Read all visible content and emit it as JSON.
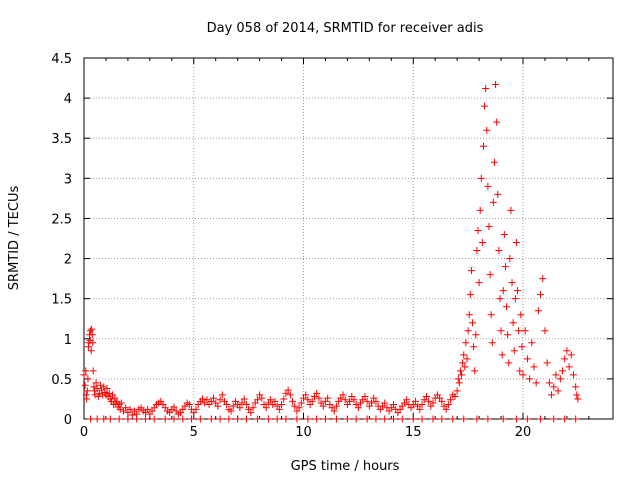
{
  "chart_data": {
    "type": "scatter",
    "title": "Day 058 of 2014, SRMTID for receiver adis",
    "xlabel": "GPS time / hours",
    "ylabel": "SRMTID / TECUs",
    "xlim": [
      0,
      24.1
    ],
    "ylim": [
      0,
      4.5
    ],
    "xticks": [
      0,
      5,
      10,
      15,
      20
    ],
    "yticks": [
      0,
      0.5,
      1,
      1.5,
      2,
      2.5,
      3,
      3.5,
      4,
      4.5
    ],
    "xtick_labels": [
      "0",
      "5",
      "10",
      "15",
      "20"
    ],
    "ytick_labels": [
      "0",
      "0.5",
      "1",
      "1.5",
      "2",
      "2.5",
      "3",
      "3.5",
      "4",
      "4.5"
    ],
    "grid": true,
    "marker": "+",
    "marker_color": "#ff0000",
    "series": [
      {
        "name": "SRMTID",
        "points": [
          [
            0.0,
            0.55
          ],
          [
            0.05,
            0.42
          ],
          [
            0.08,
            0.6
          ],
          [
            0.1,
            0.3
          ],
          [
            0.12,
            0.25
          ],
          [
            0.15,
            0.35
          ],
          [
            0.18,
            0.5
          ],
          [
            0.2,
            0.9
          ],
          [
            0.22,
            0.95
          ],
          [
            0.25,
            1.05
          ],
          [
            0.28,
            0.98
          ],
          [
            0.3,
            1.1
          ],
          [
            0.33,
            0.85
          ],
          [
            0.35,
            1.12
          ],
          [
            0.38,
            1.05
          ],
          [
            0.4,
            0.95
          ],
          [
            0.42,
            0.6
          ],
          [
            0.45,
            0.4
          ],
          [
            0.48,
            0.35
          ],
          [
            0.5,
            0.3
          ],
          [
            0.55,
            0.45
          ],
          [
            0.6,
            0.38
          ],
          [
            0.65,
            0.28
          ],
          [
            0.7,
            0.32
          ],
          [
            0.75,
            0.42
          ],
          [
            0.8,
            0.36
          ],
          [
            0.85,
            0.3
          ],
          [
            0.9,
            0.4
          ],
          [
            0.95,
            0.33
          ],
          [
            1.0,
            0.3
          ],
          [
            1.05,
            0.38
          ],
          [
            1.1,
            0.28
          ],
          [
            1.15,
            0.32
          ],
          [
            1.2,
            0.25
          ],
          [
            1.25,
            0.22
          ],
          [
            1.3,
            0.3
          ],
          [
            1.35,
            0.18
          ],
          [
            1.4,
            0.26
          ],
          [
            1.45,
            0.2
          ],
          [
            1.5,
            0.22
          ],
          [
            1.55,
            0.15
          ],
          [
            1.6,
            0.18
          ],
          [
            1.65,
            0.12
          ],
          [
            1.7,
            0.2
          ],
          [
            1.8,
            0.1
          ],
          [
            1.9,
            0.14
          ],
          [
            2.0,
            0.08
          ],
          [
            2.1,
            0.12
          ],
          [
            2.2,
            0.05
          ],
          [
            2.3,
            0.1
          ],
          [
            2.4,
            0.06
          ],
          [
            2.5,
            0.12
          ],
          [
            2.6,
            0.14
          ],
          [
            2.7,
            0.1
          ],
          [
            2.8,
            0.08
          ],
          [
            2.9,
            0.12
          ],
          [
            3.0,
            0.06
          ],
          [
            3.1,
            0.1
          ],
          [
            3.2,
            0.14
          ],
          [
            3.3,
            0.18
          ],
          [
            3.4,
            0.2
          ],
          [
            3.5,
            0.22
          ],
          [
            3.6,
            0.18
          ],
          [
            3.7,
            0.14
          ],
          [
            3.8,
            0.1
          ],
          [
            3.9,
            0.08
          ],
          [
            4.0,
            0.12
          ],
          [
            4.1,
            0.15
          ],
          [
            4.2,
            0.1
          ],
          [
            4.3,
            0.06
          ],
          [
            4.4,
            0.08
          ],
          [
            4.5,
            0.12
          ],
          [
            4.6,
            0.16
          ],
          [
            4.7,
            0.2
          ],
          [
            4.8,
            0.18
          ],
          [
            4.9,
            0.12
          ],
          [
            5.0,
            0.08
          ],
          [
            5.1,
            0.12
          ],
          [
            5.2,
            0.18
          ],
          [
            5.3,
            0.22
          ],
          [
            5.4,
            0.25
          ],
          [
            5.5,
            0.2
          ],
          [
            5.6,
            0.24
          ],
          [
            5.7,
            0.18
          ],
          [
            5.8,
            0.22
          ],
          [
            5.9,
            0.26
          ],
          [
            6.0,
            0.2
          ],
          [
            6.1,
            0.16
          ],
          [
            6.2,
            0.24
          ],
          [
            6.3,
            0.3
          ],
          [
            6.4,
            0.22
          ],
          [
            6.5,
            0.18
          ],
          [
            6.6,
            0.12
          ],
          [
            6.7,
            0.1
          ],
          [
            6.8,
            0.16
          ],
          [
            6.9,
            0.22
          ],
          [
            7.0,
            0.18
          ],
          [
            7.1,
            0.14
          ],
          [
            7.2,
            0.2
          ],
          [
            7.3,
            0.25
          ],
          [
            7.4,
            0.18
          ],
          [
            7.5,
            0.12
          ],
          [
            7.6,
            0.08
          ],
          [
            7.7,
            0.14
          ],
          [
            7.8,
            0.2
          ],
          [
            7.9,
            0.24
          ],
          [
            8.0,
            0.3
          ],
          [
            8.1,
            0.26
          ],
          [
            8.2,
            0.18
          ],
          [
            8.3,
            0.14
          ],
          [
            8.4,
            0.2
          ],
          [
            8.5,
            0.24
          ],
          [
            8.6,
            0.18
          ],
          [
            8.7,
            0.22
          ],
          [
            8.8,
            0.16
          ],
          [
            8.9,
            0.12
          ],
          [
            9.0,
            0.18
          ],
          [
            9.1,
            0.25
          ],
          [
            9.2,
            0.32
          ],
          [
            9.3,
            0.36
          ],
          [
            9.4,
            0.3
          ],
          [
            9.5,
            0.22
          ],
          [
            9.6,
            0.16
          ],
          [
            9.7,
            0.1
          ],
          [
            9.8,
            0.14
          ],
          [
            9.9,
            0.2
          ],
          [
            10.0,
            0.26
          ],
          [
            10.1,
            0.3
          ],
          [
            10.2,
            0.24
          ],
          [
            10.3,
            0.18
          ],
          [
            10.4,
            0.22
          ],
          [
            10.5,
            0.28
          ],
          [
            10.6,
            0.32
          ],
          [
            10.7,
            0.26
          ],
          [
            10.8,
            0.2
          ],
          [
            10.9,
            0.16
          ],
          [
            11.0,
            0.22
          ],
          [
            11.1,
            0.26
          ],
          [
            11.2,
            0.18
          ],
          [
            11.3,
            0.14
          ],
          [
            11.4,
            0.1
          ],
          [
            11.5,
            0.16
          ],
          [
            11.6,
            0.22
          ],
          [
            11.7,
            0.26
          ],
          [
            11.8,
            0.3
          ],
          [
            11.9,
            0.24
          ],
          [
            12.0,
            0.18
          ],
          [
            12.1,
            0.22
          ],
          [
            12.2,
            0.28
          ],
          [
            12.3,
            0.24
          ],
          [
            12.4,
            0.18
          ],
          [
            12.5,
            0.14
          ],
          [
            12.6,
            0.2
          ],
          [
            12.7,
            0.24
          ],
          [
            12.8,
            0.28
          ],
          [
            12.9,
            0.22
          ],
          [
            13.0,
            0.16
          ],
          [
            13.1,
            0.2
          ],
          [
            13.2,
            0.26
          ],
          [
            13.3,
            0.22
          ],
          [
            13.4,
            0.16
          ],
          [
            13.5,
            0.12
          ],
          [
            13.6,
            0.16
          ],
          [
            13.7,
            0.2
          ],
          [
            13.8,
            0.14
          ],
          [
            13.9,
            0.1
          ],
          [
            14.0,
            0.14
          ],
          [
            14.1,
            0.18
          ],
          [
            14.2,
            0.12
          ],
          [
            14.3,
            0.08
          ],
          [
            14.4,
            0.12
          ],
          [
            14.5,
            0.16
          ],
          [
            14.6,
            0.2
          ],
          [
            14.7,
            0.24
          ],
          [
            14.8,
            0.18
          ],
          [
            14.9,
            0.14
          ],
          [
            15.0,
            0.18
          ],
          [
            15.1,
            0.22
          ],
          [
            15.2,
            0.16
          ],
          [
            15.3,
            0.12
          ],
          [
            15.4,
            0.18
          ],
          [
            15.5,
            0.24
          ],
          [
            15.6,
            0.28
          ],
          [
            15.7,
            0.22
          ],
          [
            15.8,
            0.16
          ],
          [
            15.9,
            0.2
          ],
          [
            16.0,
            0.26
          ],
          [
            16.1,
            0.3
          ],
          [
            16.2,
            0.26
          ],
          [
            16.3,
            0.22
          ],
          [
            16.4,
            0.16
          ],
          [
            16.5,
            0.12
          ],
          [
            16.6,
            0.18
          ],
          [
            16.7,
            0.24
          ],
          [
            16.8,
            0.3
          ],
          [
            16.9,
            0.28
          ],
          [
            17.0,
            0.35
          ],
          [
            17.05,
            0.5
          ],
          [
            17.1,
            0.45
          ],
          [
            17.15,
            0.6
          ],
          [
            17.2,
            0.55
          ],
          [
            17.25,
            0.7
          ],
          [
            17.3,
            0.8
          ],
          [
            17.35,
            0.65
          ],
          [
            17.4,
            0.95
          ],
          [
            17.45,
            0.75
          ],
          [
            17.5,
            1.1
          ],
          [
            17.55,
            1.3
          ],
          [
            17.6,
            1.55
          ],
          [
            17.65,
            1.85
          ],
          [
            17.7,
            1.2
          ],
          [
            17.75,
            0.9
          ],
          [
            17.8,
            0.6
          ],
          [
            17.85,
            1.05
          ],
          [
            17.9,
            2.1
          ],
          [
            17.95,
            2.35
          ],
          [
            18.0,
            1.7
          ],
          [
            18.05,
            2.6
          ],
          [
            18.1,
            3.0
          ],
          [
            18.15,
            2.2
          ],
          [
            18.2,
            3.4
          ],
          [
            18.25,
            3.9
          ],
          [
            18.3,
            4.12
          ],
          [
            18.35,
            3.6
          ],
          [
            18.4,
            2.9
          ],
          [
            18.45,
            2.4
          ],
          [
            18.5,
            1.8
          ],
          [
            18.55,
            1.3
          ],
          [
            18.6,
            0.95
          ],
          [
            18.65,
            2.7
          ],
          [
            18.7,
            3.2
          ],
          [
            18.75,
            4.17
          ],
          [
            18.8,
            3.7
          ],
          [
            18.85,
            2.8
          ],
          [
            18.9,
            2.1
          ],
          [
            18.95,
            1.5
          ],
          [
            19.0,
            1.1
          ],
          [
            19.05,
            0.8
          ],
          [
            19.1,
            1.6
          ],
          [
            19.15,
            2.3
          ],
          [
            19.2,
            1.9
          ],
          [
            19.25,
            1.4
          ],
          [
            19.3,
            1.05
          ],
          [
            19.35,
            0.7
          ],
          [
            19.4,
            2.0
          ],
          [
            19.45,
            2.6
          ],
          [
            19.5,
            1.7
          ],
          [
            19.55,
            1.2
          ],
          [
            19.6,
            0.85
          ],
          [
            19.65,
            1.5
          ],
          [
            19.7,
            2.2
          ],
          [
            19.75,
            1.6
          ],
          [
            19.8,
            1.1
          ],
          [
            19.85,
            0.6
          ],
          [
            19.9,
            1.3
          ],
          [
            19.95,
            0.9
          ],
          [
            20.0,
            0.55
          ],
          [
            20.1,
            1.1
          ],
          [
            20.2,
            0.75
          ],
          [
            20.3,
            0.5
          ],
          [
            20.4,
            0.95
          ],
          [
            20.5,
            0.65
          ],
          [
            20.6,
            0.45
          ],
          [
            20.7,
            1.35
          ],
          [
            20.8,
            1.55
          ],
          [
            20.9,
            1.75
          ],
          [
            21.0,
            1.1
          ],
          [
            21.1,
            0.7
          ],
          [
            21.2,
            0.45
          ],
          [
            21.3,
            0.3
          ],
          [
            21.4,
            0.4
          ],
          [
            21.5,
            0.55
          ],
          [
            21.6,
            0.35
          ],
          [
            21.7,
            0.5
          ],
          [
            21.8,
            0.6
          ],
          [
            21.9,
            0.75
          ],
          [
            22.0,
            0.85
          ],
          [
            22.1,
            0.65
          ],
          [
            22.2,
            0.8
          ],
          [
            22.3,
            0.55
          ],
          [
            22.4,
            0.4
          ],
          [
            22.45,
            0.3
          ],
          [
            22.5,
            0.25
          ]
        ]
      }
    ],
    "baseline_points_x": [
      0.3,
      0.6,
      0.9,
      1.2,
      1.6,
      2.0,
      2.4,
      2.8,
      3.2,
      3.7,
      4.1,
      4.5,
      4.9,
      5.3,
      5.8,
      6.2,
      6.6,
      7.0,
      7.4,
      7.9,
      8.4,
      8.8,
      9.2,
      9.7,
      10.2,
      10.6,
      11.0,
      11.5,
      12.0,
      12.4,
      12.9,
      13.3,
      13.7,
      14.1,
      14.5,
      15.0,
      15.4,
      15.9,
      16.3,
      16.8,
      17.3,
      17.9,
      18.4,
      19.1,
      19.7,
      20.2,
      20.8,
      21.4,
      21.9,
      22.4
    ]
  }
}
